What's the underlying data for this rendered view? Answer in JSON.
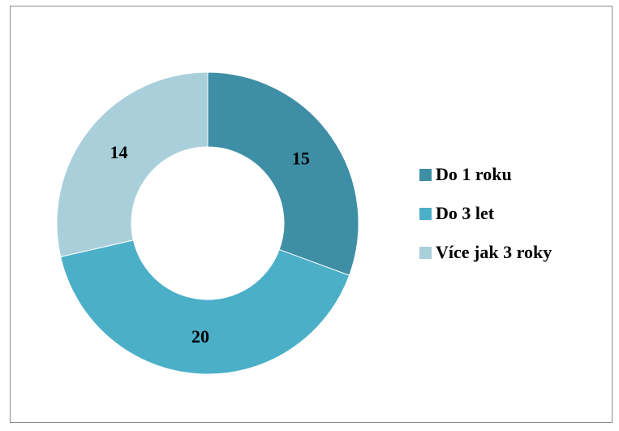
{
  "chart_data": {
    "type": "pie",
    "variant": "doughnut",
    "categories": [
      "Do 1 roku",
      "Do 3 let",
      "Více jak 3 roky"
    ],
    "values": [
      15,
      20,
      14
    ],
    "colors": [
      "#3e8ea5",
      "#4bafc8",
      "#a9cfdb"
    ],
    "data_labels": [
      "15",
      "20",
      "14"
    ],
    "legend_position": "right",
    "title": ""
  },
  "legend": {
    "items": [
      {
        "label": "Do 1 roku",
        "color": "#3e8ea5"
      },
      {
        "label": "Do 3 let",
        "color": "#4bafc8"
      },
      {
        "label": "Více jak 3 roky",
        "color": "#a9cfdb"
      }
    ]
  }
}
